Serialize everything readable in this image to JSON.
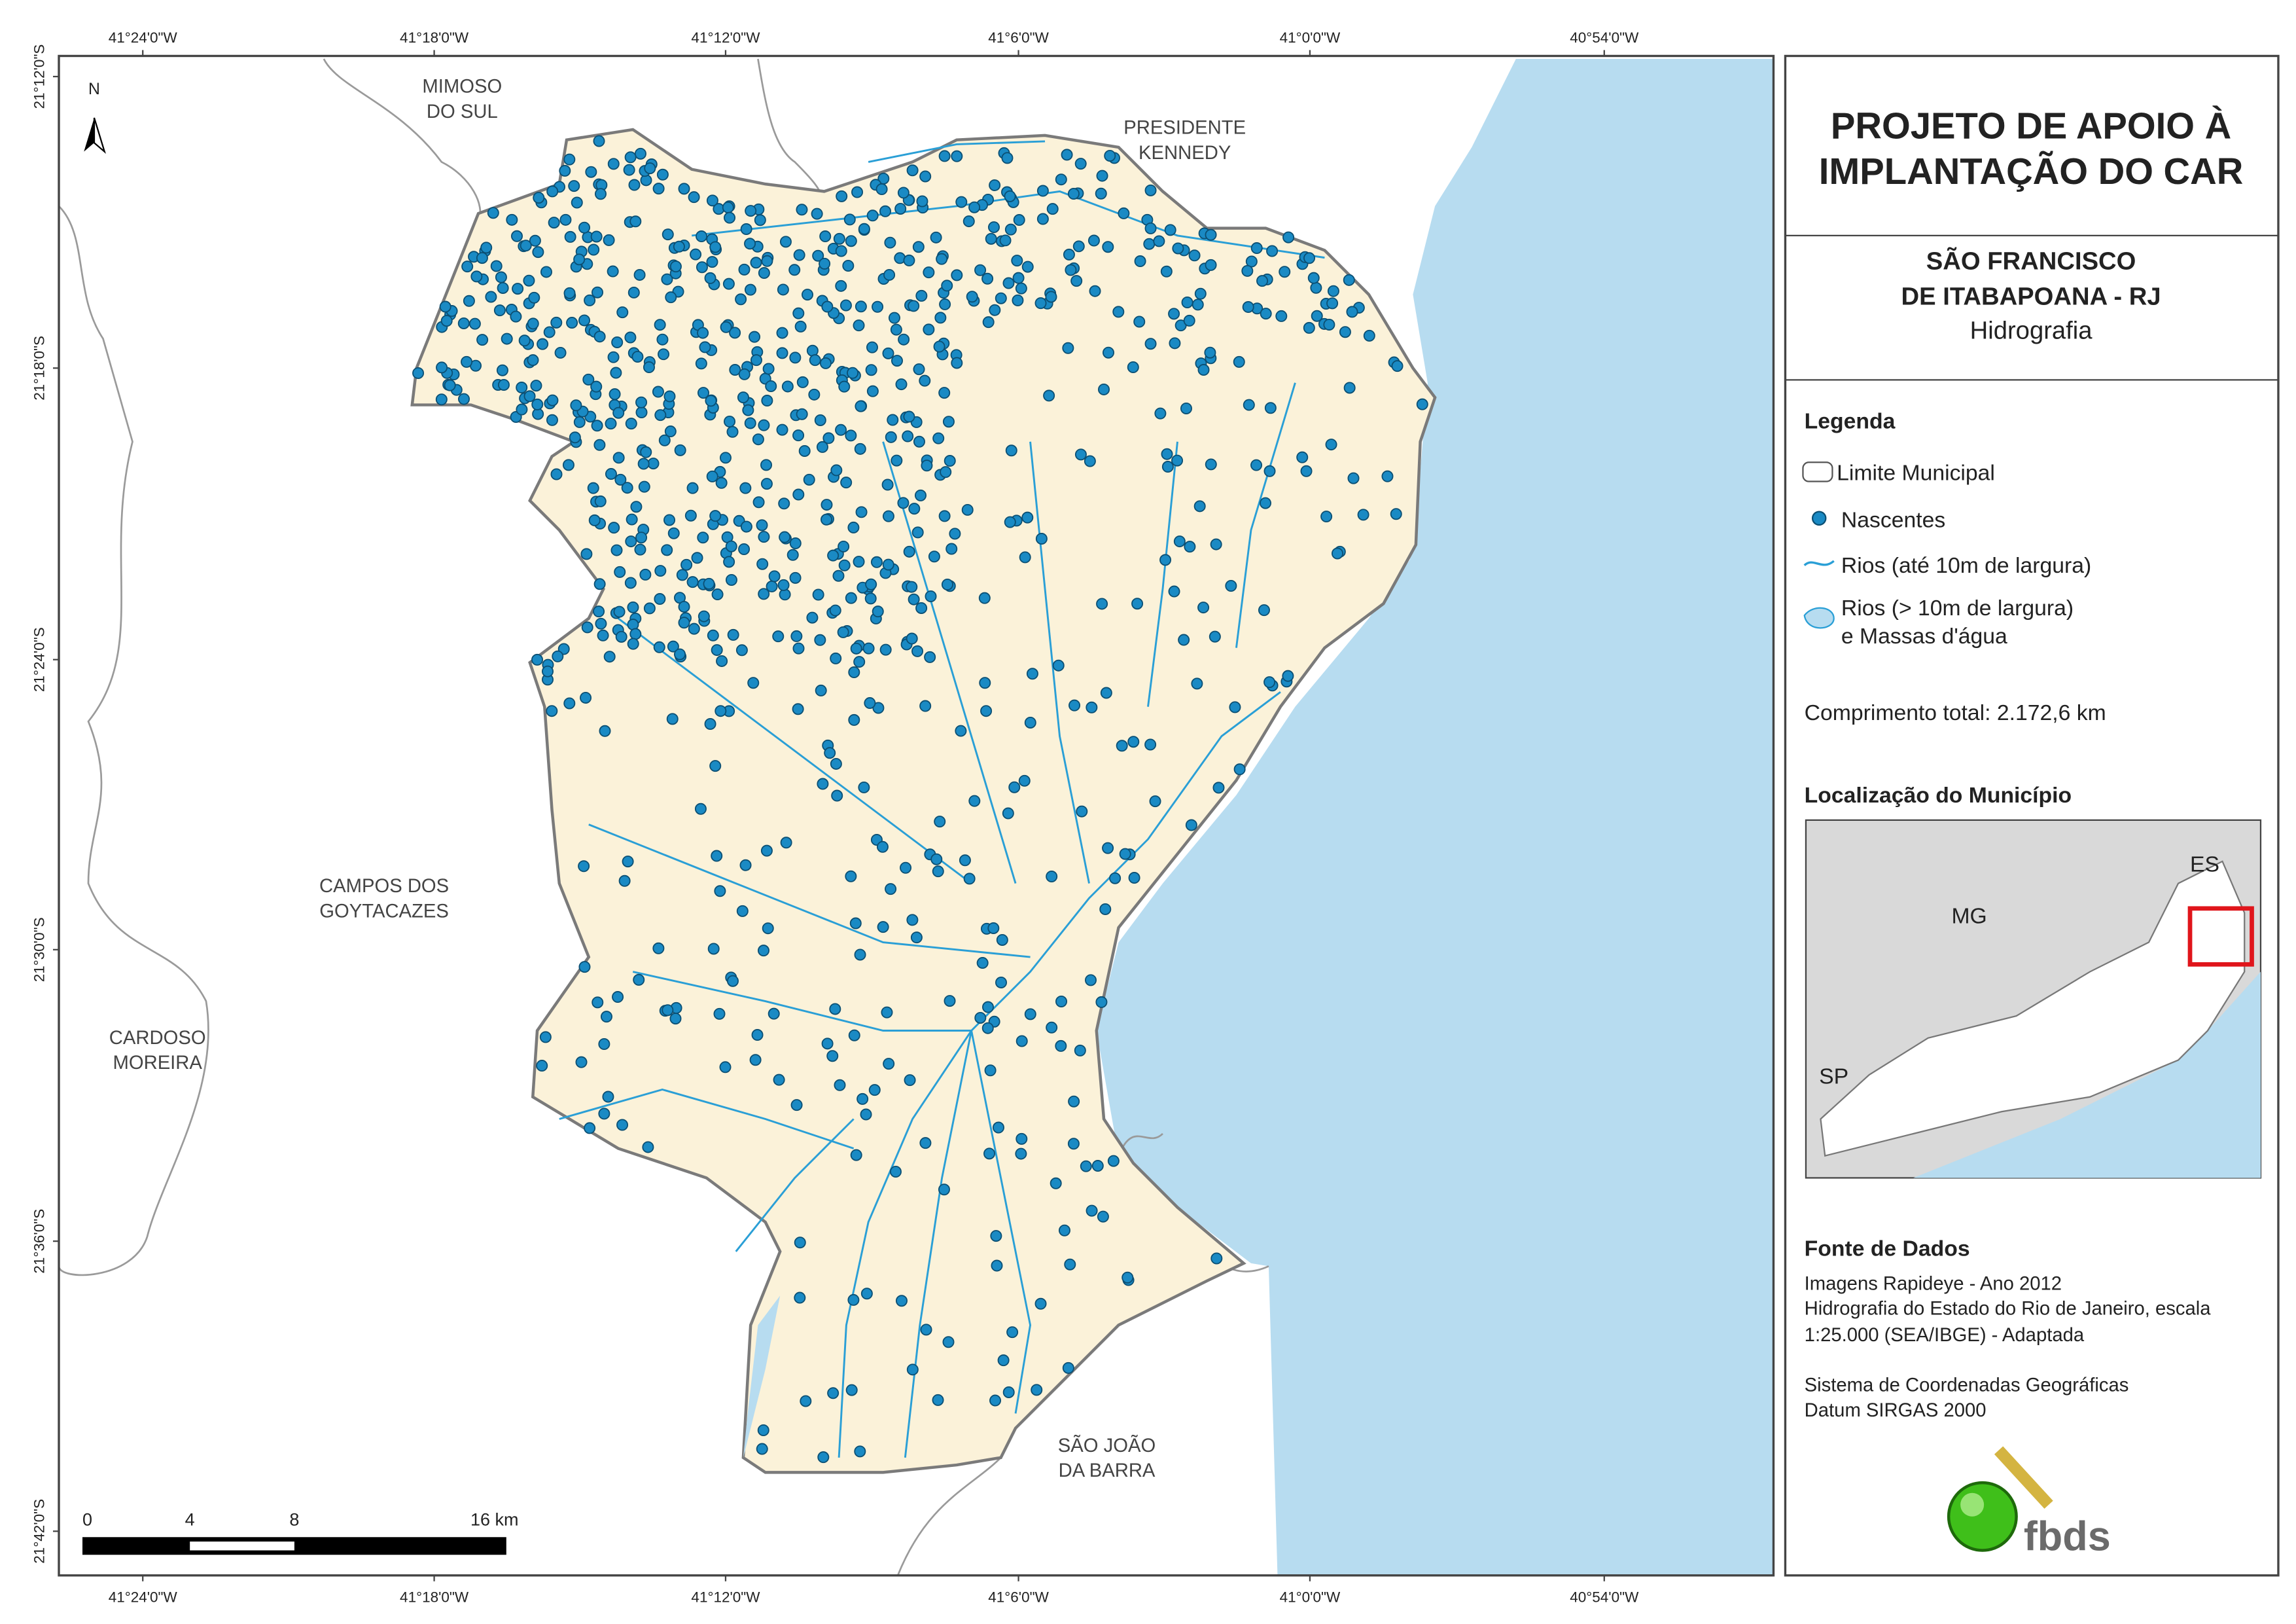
{
  "map": {
    "graticule": {
      "longitudes": [
        "41°24'0\"W",
        "41°18'0\"W",
        "41°12'0\"W",
        "41°6'0\"W",
        "41°0'0\"W",
        "40°54'0\"W"
      ],
      "latitudes": [
        "21°12'0\"S",
        "21°18'0\"S",
        "21°24'0\"S",
        "21°30'0\"S",
        "21°36'0\"S",
        "21°42'0\"S"
      ]
    },
    "north": "N",
    "places": [
      {
        "lines": [
          "MIMOSO",
          "DO SUL"
        ]
      },
      {
        "lines": [
          "PRESIDENTE",
          "KENNEDY"
        ]
      },
      {
        "lines": [
          "CAMPOS DOS",
          "GOYTACAZES"
        ]
      },
      {
        "lines": [
          "CARDOSO",
          "MOREIRA"
        ]
      },
      {
        "lines": [
          "SÃO JOÃO",
          "DA BARRA"
        ]
      }
    ],
    "scale_bar": {
      "labels": [
        "0",
        "4",
        "8",
        "16 km"
      ]
    }
  },
  "panel": {
    "title": [
      "PROJETO DE APOIO À",
      "IMPLANTAÇÃO DO CAR"
    ],
    "subtitle": [
      "SÃO FRANCISCO",
      "DE ITABAPOANA - RJ"
    ],
    "theme": "Hidrografia",
    "legend": {
      "title": "Legenda",
      "items": [
        {
          "lines": [
            "Limite Municipal"
          ]
        },
        {
          "lines": [
            "Nascentes"
          ]
        },
        {
          "lines": [
            "Rios (até 10m de largura)"
          ]
        },
        {
          "lines": [
            "Rios (> 10m de largura)",
            "e Massas d'água"
          ]
        }
      ]
    },
    "total": "Comprimento total:  2.172,6 km",
    "location": {
      "title": "Localização do Município",
      "labels": [
        "ES",
        "MG",
        "SP"
      ]
    },
    "sources": {
      "title": "Fonte de Dados",
      "lines": [
        "Imagens Rapideye - Ano 2012",
        "Hidrografia do Estado do Rio de Janeiro, escala",
        "1:25.000 (SEA/IBGE) - Adaptada",
        "Sistema de Coordenadas Geográficas",
        "Datum SIRGAS 2000"
      ]
    },
    "logo": "fbds"
  }
}
